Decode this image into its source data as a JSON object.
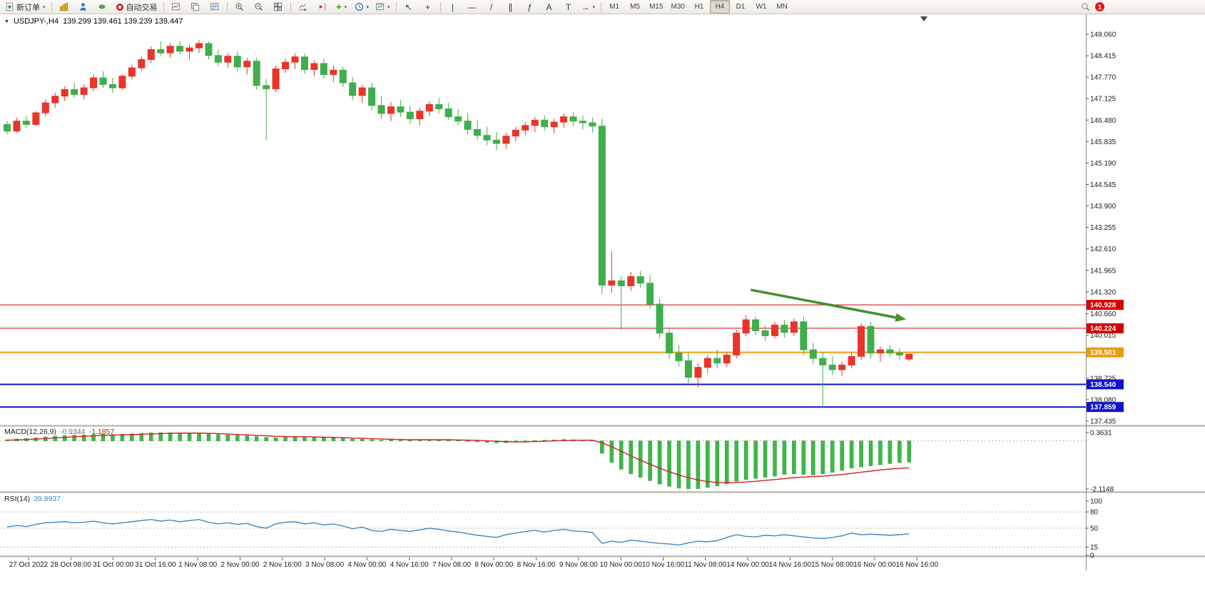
{
  "toolbar": {
    "new_order_label": "新订单",
    "autotrading_label": "自动交易",
    "timeframes": [
      "M1",
      "M5",
      "M15",
      "M30",
      "H1",
      "H4",
      "D1",
      "W1",
      "MN"
    ],
    "active_timeframe": "H4",
    "notification_count": "1",
    "glyphs": {
      "cursor": "↖",
      "crosshair": "+",
      "vertical_line": "|",
      "horizontal_line": "—",
      "trendline": "/",
      "channel": "∥",
      "fibonacci": "ƒ",
      "text": "A",
      "text_label": "T",
      "arrows": "→",
      "indicators": "+",
      "caret": "▾"
    }
  },
  "chart_header": {
    "symbol_period": "USDJPY-,H4",
    "ohlc_text": "139.299 139.461 139.239 139.447",
    "collapse_marker": "▼"
  },
  "macd_panel": {
    "name": "MACD(12,26,9)",
    "main_value": "-0.9344",
    "signal_value": "-1.1857"
  },
  "rsi_panel": {
    "name": "RSI(14)",
    "value": "39.8937"
  },
  "chart_data": {
    "type": "candlestick",
    "symbol": "USDJPY-",
    "period": "H4",
    "title": "USDJPY-,H4",
    "current_ohlc": {
      "open": 139.299,
      "high": 139.461,
      "low": 139.239,
      "close": 139.447
    },
    "up_color": "#e8352a",
    "down_color": "#3fae4c",
    "y_ticks": [
      "149.060",
      "148.415",
      "147.770",
      "147.125",
      "146.480",
      "145.835",
      "145.190",
      "144.545",
      "143.900",
      "143.255",
      "142.610",
      "141.965",
      "141.320",
      "140.660",
      "140.015",
      "138.725",
      "138.080",
      "137.435"
    ],
    "x_labels": [
      "27 Oct 2022",
      "28 Oct 08:00",
      "31 Oct 00:00",
      "31 Oct 16:00",
      "1 Nov 08:00",
      "2 Nov 00:00",
      "2 Nov 16:00",
      "3 Nov 08:00",
      "4 Nov 00:00",
      "4 Nov 16:00",
      "7 Nov 08:00",
      "8 Nov 00:00",
      "8 Nov 16:00",
      "9 Nov 08:00",
      "10 Nov 00:00",
      "10 Nov 16:00",
      "11 Nov 08:00",
      "14 Nov 00:00",
      "14 Nov 16:00",
      "15 Nov 08:00",
      "16 Nov 00:00",
      "16 Nov 16:00"
    ],
    "hlines": [
      {
        "price": 140.928,
        "color": "#d40000",
        "width": 1
      },
      {
        "price": 140.224,
        "color": "#d40000",
        "width": 1
      },
      {
        "price": 139.501,
        "color": "#ef9b0f",
        "width": 2
      },
      {
        "price": 138.54,
        "color": "#1212cc",
        "width": 2
      },
      {
        "price": 137.859,
        "color": "#1212cc",
        "width": 2
      }
    ],
    "line_labels": [
      {
        "text": "140.928",
        "price": 140.928,
        "color": "#d40000"
      },
      {
        "text": "140.224",
        "price": 140.224,
        "color": "#d40000"
      },
      {
        "text": "139.501",
        "price": 139.501,
        "color": "#ef9b0f"
      },
      {
        "text": "138.540",
        "price": 138.54,
        "color": "#1212cc"
      },
      {
        "text": "137.859",
        "price": 137.859,
        "color": "#1212cc"
      }
    ],
    "trend_arrow": {
      "from_bar": 77.5,
      "from_price": 141.38,
      "to_bar": 92.6,
      "to_price": 140.55,
      "color": "#46902b"
    },
    "candles": [
      [
        146.35,
        146.45,
        146.05,
        146.15
      ],
      [
        146.15,
        146.55,
        146.1,
        146.45
      ],
      [
        146.45,
        146.6,
        146.25,
        146.35
      ],
      [
        146.35,
        146.75,
        146.3,
        146.7
      ],
      [
        146.7,
        147.1,
        146.6,
        147.0
      ],
      [
        147.0,
        147.3,
        146.85,
        147.2
      ],
      [
        147.2,
        147.5,
        147.05,
        147.4
      ],
      [
        147.4,
        147.6,
        147.15,
        147.25
      ],
      [
        147.25,
        147.55,
        147.1,
        147.45
      ],
      [
        147.45,
        147.85,
        147.35,
        147.75
      ],
      [
        147.75,
        147.95,
        147.45,
        147.55
      ],
      [
        147.55,
        147.75,
        147.3,
        147.45
      ],
      [
        147.45,
        147.85,
        147.4,
        147.8
      ],
      [
        147.8,
        148.15,
        147.7,
        148.05
      ],
      [
        148.05,
        148.4,
        147.95,
        148.3
      ],
      [
        148.3,
        148.7,
        148.2,
        148.6
      ],
      [
        148.6,
        148.85,
        148.4,
        148.5
      ],
      [
        148.5,
        148.8,
        148.35,
        148.7
      ],
      [
        148.7,
        148.85,
        148.45,
        148.55
      ],
      [
        148.55,
        148.75,
        148.3,
        148.65
      ],
      [
        148.65,
        148.88,
        148.5,
        148.78
      ],
      [
        148.78,
        148.85,
        148.3,
        148.42
      ],
      [
        148.42,
        148.6,
        148.1,
        148.22
      ],
      [
        148.22,
        148.5,
        148.05,
        148.4
      ],
      [
        148.4,
        148.55,
        147.95,
        148.08
      ],
      [
        148.08,
        148.35,
        147.85,
        148.25
      ],
      [
        148.25,
        148.35,
        147.4,
        147.52
      ],
      [
        147.52,
        147.72,
        145.88,
        147.42
      ],
      [
        147.42,
        148.12,
        147.32,
        148.02
      ],
      [
        148.02,
        148.32,
        147.9,
        148.22
      ],
      [
        148.22,
        148.48,
        148.02,
        148.38
      ],
      [
        148.38,
        148.48,
        147.88,
        148.0
      ],
      [
        148.0,
        148.28,
        147.8,
        148.18
      ],
      [
        148.18,
        148.32,
        147.72,
        147.85
      ],
      [
        147.85,
        148.12,
        147.62,
        147.98
      ],
      [
        147.98,
        148.08,
        147.48,
        147.6
      ],
      [
        147.6,
        147.78,
        147.08,
        147.22
      ],
      [
        147.22,
        147.55,
        147.0,
        147.45
      ],
      [
        147.45,
        147.6,
        146.78,
        146.92
      ],
      [
        146.92,
        147.2,
        146.52,
        146.68
      ],
      [
        146.68,
        147.02,
        146.45,
        146.88
      ],
      [
        146.88,
        147.08,
        146.58,
        146.72
      ],
      [
        146.72,
        146.92,
        146.38,
        146.52
      ],
      [
        146.52,
        146.85,
        146.32,
        146.75
      ],
      [
        146.75,
        147.05,
        146.6,
        146.95
      ],
      [
        146.95,
        147.15,
        146.68,
        146.82
      ],
      [
        146.82,
        147.0,
        146.48,
        146.58
      ],
      [
        146.58,
        146.8,
        146.32,
        146.45
      ],
      [
        146.45,
        146.68,
        146.05,
        146.2
      ],
      [
        146.2,
        146.48,
        145.88,
        146.02
      ],
      [
        146.02,
        146.28,
        145.72,
        145.88
      ],
      [
        145.88,
        146.12,
        145.58,
        145.78
      ],
      [
        145.78,
        146.1,
        145.62,
        146.0
      ],
      [
        146.0,
        146.28,
        145.85,
        146.18
      ],
      [
        146.18,
        146.42,
        146.02,
        146.32
      ],
      [
        146.32,
        146.58,
        146.12,
        146.48
      ],
      [
        146.48,
        146.62,
        146.15,
        146.28
      ],
      [
        146.28,
        146.52,
        146.08,
        146.42
      ],
      [
        146.42,
        146.68,
        146.25,
        146.58
      ],
      [
        146.58,
        146.72,
        146.3,
        146.45
      ],
      [
        146.45,
        146.62,
        146.2,
        146.4
      ],
      [
        146.4,
        146.55,
        146.1,
        146.3
      ],
      [
        146.3,
        146.52,
        141.25,
        141.52
      ],
      [
        141.52,
        142.55,
        141.3,
        141.65
      ],
      [
        141.65,
        141.78,
        140.18,
        141.5
      ],
      [
        141.5,
        141.92,
        141.35,
        141.78
      ],
      [
        141.78,
        141.95,
        141.45,
        141.58
      ],
      [
        141.58,
        141.82,
        140.82,
        140.95
      ],
      [
        140.95,
        141.12,
        139.92,
        140.08
      ],
      [
        140.08,
        140.25,
        139.32,
        139.48
      ],
      [
        139.48,
        139.72,
        139.08,
        139.25
      ],
      [
        139.25,
        139.48,
        138.58,
        138.75
      ],
      [
        138.75,
        139.18,
        138.45,
        139.05
      ],
      [
        139.05,
        139.42,
        138.88,
        139.32
      ],
      [
        139.32,
        139.58,
        139.02,
        139.18
      ],
      [
        139.18,
        139.52,
        139.05,
        139.42
      ],
      [
        139.42,
        140.18,
        139.32,
        140.08
      ],
      [
        140.08,
        140.62,
        139.98,
        140.48
      ],
      [
        140.48,
        140.58,
        140.02,
        140.15
      ],
      [
        140.15,
        140.32,
        139.85,
        140.0
      ],
      [
        140.0,
        140.42,
        139.92,
        140.32
      ],
      [
        140.32,
        140.48,
        139.95,
        140.1
      ],
      [
        140.1,
        140.52,
        140.0,
        140.42
      ],
      [
        140.42,
        140.58,
        139.42,
        139.58
      ],
      [
        139.58,
        139.78,
        139.15,
        139.32
      ],
      [
        139.32,
        139.52,
        137.82,
        139.12
      ],
      [
        139.12,
        139.38,
        138.82,
        138.98
      ],
      [
        138.98,
        139.22,
        138.78,
        139.12
      ],
      [
        139.12,
        139.48,
        139.02,
        139.38
      ],
      [
        139.38,
        140.38,
        139.28,
        140.28
      ],
      [
        140.28,
        140.42,
        139.32,
        139.48
      ],
      [
        139.48,
        139.68,
        139.22,
        139.58
      ],
      [
        139.58,
        139.72,
        139.38,
        139.48
      ],
      [
        139.48,
        139.62,
        139.28,
        139.42
      ],
      [
        139.299,
        139.461,
        139.239,
        139.447
      ]
    ],
    "macd": {
      "label": "MACD(12,26,9)",
      "main": -0.9344,
      "signal_value": -1.1857,
      "hist_color": "#3db84a",
      "signal_color": "#d62020",
      "scale_ticks": [
        {
          "text": "0.3631",
          "value": 0.3631
        },
        {
          "text": "-2.1148",
          "value": -2.1148
        }
      ],
      "histogram": [
        0.05,
        0.08,
        0.1,
        0.13,
        0.17,
        0.2,
        0.23,
        0.25,
        0.26,
        0.28,
        0.29,
        0.28,
        0.29,
        0.31,
        0.33,
        0.35,
        0.36,
        0.36,
        0.35,
        0.34,
        0.33,
        0.31,
        0.28,
        0.26,
        0.24,
        0.22,
        0.19,
        0.15,
        0.14,
        0.16,
        0.18,
        0.17,
        0.16,
        0.14,
        0.13,
        0.11,
        0.08,
        0.07,
        0.05,
        0.03,
        0.04,
        0.03,
        0.02,
        0.04,
        0.06,
        0.05,
        0.03,
        0.02,
        -0.01,
        -0.04,
        -0.07,
        -0.09,
        -0.08,
        -0.05,
        -0.02,
        0.01,
        0.03,
        0.04,
        0.06,
        0.05,
        0.04,
        0.02,
        -0.55,
        -0.95,
        -1.25,
        -1.45,
        -1.6,
        -1.75,
        -1.9,
        -2.0,
        -2.08,
        -2.11,
        -2.1,
        -2.05,
        -1.98,
        -1.88,
        -1.78,
        -1.7,
        -1.65,
        -1.6,
        -1.55,
        -1.48,
        -1.45,
        -1.48,
        -1.5,
        -1.45,
        -1.38,
        -1.3,
        -1.2,
        -1.15,
        -1.1,
        -1.05,
        -1.0,
        -0.96,
        -0.9344
      ],
      "signal": [
        0.03,
        0.04,
        0.06,
        0.08,
        0.1,
        0.13,
        0.15,
        0.18,
        0.2,
        0.22,
        0.24,
        0.25,
        0.26,
        0.27,
        0.29,
        0.3,
        0.32,
        0.33,
        0.34,
        0.34,
        0.34,
        0.33,
        0.32,
        0.3,
        0.28,
        0.26,
        0.24,
        0.22,
        0.2,
        0.19,
        0.18,
        0.18,
        0.17,
        0.16,
        0.15,
        0.14,
        0.12,
        0.11,
        0.09,
        0.08,
        0.07,
        0.06,
        0.05,
        0.05,
        0.05,
        0.05,
        0.05,
        0.04,
        0.03,
        0.02,
        0.0,
        -0.02,
        -0.04,
        -0.05,
        -0.04,
        -0.03,
        -0.02,
        0.0,
        0.01,
        0.02,
        0.03,
        0.03,
        -0.09,
        -0.26,
        -0.46,
        -0.66,
        -0.85,
        -1.03,
        -1.2,
        -1.36,
        -1.5,
        -1.62,
        -1.72,
        -1.79,
        -1.83,
        -1.84,
        -1.83,
        -1.81,
        -1.78,
        -1.74,
        -1.7,
        -1.66,
        -1.62,
        -1.59,
        -1.57,
        -1.55,
        -1.52,
        -1.48,
        -1.43,
        -1.38,
        -1.33,
        -1.28,
        -1.24,
        -1.21,
        -1.1857
      ]
    },
    "rsi": {
      "label": "RSI(14)",
      "value": 39.8937,
      "color": "#3c87c9",
      "levels": [
        80,
        50,
        15
      ],
      "scale_ticks": [
        {
          "text": "100",
          "value": 100
        },
        {
          "text": "80",
          "value": 80
        },
        {
          "text": "50",
          "value": 50
        },
        {
          "text": "15",
          "value": 15
        },
        {
          "text": "0",
          "value": 0
        }
      ],
      "series": [
        52,
        55,
        53,
        57,
        60,
        61,
        62,
        60,
        61,
        63,
        60,
        58,
        60,
        62,
        64,
        66,
        63,
        65,
        62,
        64,
        66,
        61,
        58,
        60,
        57,
        59,
        53,
        50,
        58,
        61,
        62,
        58,
        60,
        56,
        58,
        54,
        49,
        52,
        46,
        44,
        48,
        46,
        44,
        47,
        50,
        48,
        45,
        43,
        40,
        37,
        35,
        33,
        38,
        41,
        44,
        46,
        43,
        46,
        48,
        45,
        44,
        42,
        22,
        26,
        24,
        28,
        26,
        24,
        22,
        21,
        19,
        23,
        26,
        25,
        27,
        33,
        38,
        35,
        34,
        37,
        36,
        38,
        36,
        34,
        32,
        31,
        33,
        36,
        41,
        38,
        39,
        38,
        37,
        38,
        39.89
      ]
    }
  }
}
